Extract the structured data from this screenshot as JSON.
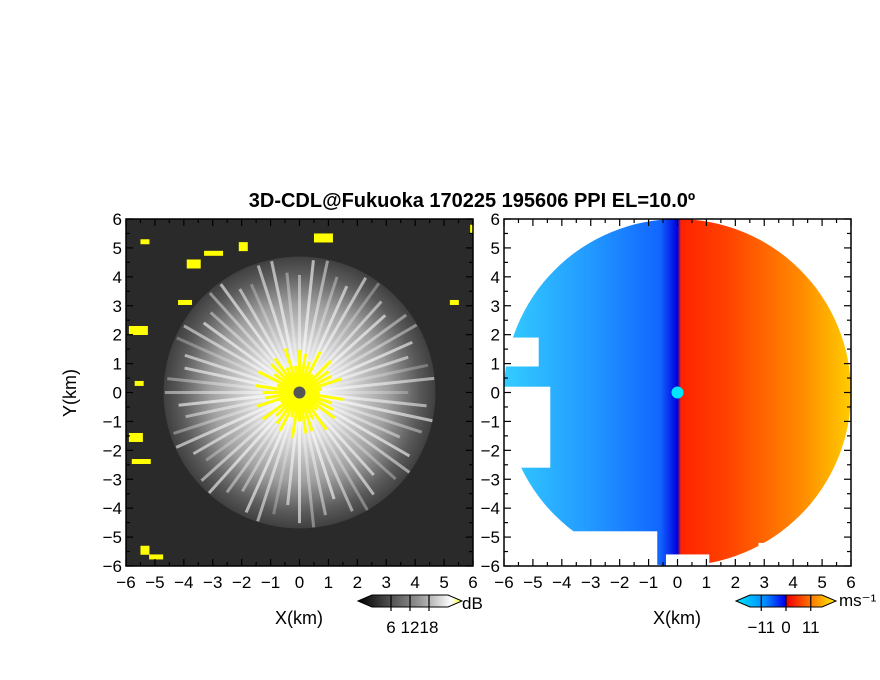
{
  "title": "3D-CDL@Fukuoka 170225 195606 PPI EL=10.0º",
  "chart_data": [
    {
      "type": "heatmap",
      "name": "reflectivity-panel",
      "title": "",
      "xlabel": "X(km)",
      "ylabel": "Y(km)",
      "xlim": [
        -6,
        6
      ],
      "ylim": [
        -6,
        6
      ],
      "xticks": [
        "−6",
        "−5",
        "−4",
        "−3",
        "−2",
        "−1",
        "0",
        "1",
        "2",
        "3",
        "4",
        "5",
        "6"
      ],
      "yticks": [
        "−6",
        "−5",
        "−4",
        "−3",
        "−2",
        "−1",
        "0",
        "1",
        "2",
        "3",
        "4",
        "5",
        "6"
      ],
      "colorbar": {
        "unit": "dB",
        "ticks": [
          "6",
          "12",
          "18"
        ],
        "range": [
          0,
          24
        ],
        "colors": [
          "#000000",
          "#555555",
          "#aaaaaa",
          "#ffffff",
          "#ffff00"
        ]
      },
      "radar_center": [
        0,
        0
      ],
      "coverage_radius_km": 4.7,
      "strong_echo_radius_km": 1.0
    },
    {
      "type": "heatmap",
      "name": "doppler-velocity-panel",
      "title": "",
      "xlabel": "X(km)",
      "ylabel": "",
      "xlim": [
        -6,
        6
      ],
      "ylim": [
        -6,
        6
      ],
      "xticks": [
        "−6",
        "−5",
        "−4",
        "−3",
        "−2",
        "−1",
        "0",
        "1",
        "2",
        "3",
        "4",
        "5",
        "6"
      ],
      "yticks": [
        "−6",
        "−5",
        "−4",
        "−3",
        "−2",
        "−1",
        "0",
        "1",
        "2",
        "3",
        "4",
        "5",
        "6"
      ],
      "colorbar": {
        "unit": "ms⁻¹",
        "ticks": [
          "−11",
          "0",
          "11"
        ],
        "range": [
          -16,
          16
        ],
        "colors": [
          "#00e5ff",
          "#0077ff",
          "#0000ee",
          "#ff0000",
          "#ff7700",
          "#ffee00"
        ]
      },
      "radar_center": [
        0,
        0
      ],
      "zero_line_x_km": 0.2,
      "coverage_radius_km": 6.0
    }
  ]
}
